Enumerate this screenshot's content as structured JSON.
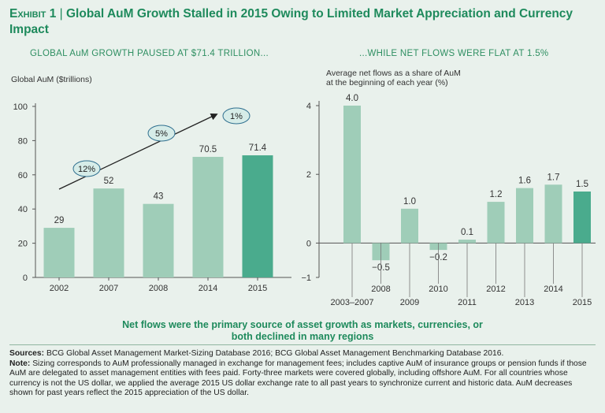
{
  "exhibit_label": "Exhibit 1",
  "title": "Global AuM Growth Stalled in 2015 Owing to Limited Market Appreciation and Currency Impact",
  "takeaway": "Net flows were the primary source of asset growth as markets, currencies, or both declined in many regions",
  "sources_label": "Sources:",
  "sources_text": "BCG Global Asset Management Market-Sizing Database 2016; BCG Global Asset Management Benchmarking Database 2016.",
  "note_label": "Note:",
  "note_text": "Sizing corresponds to AuM professionally managed in exchange for management fees; includes captive AuM of insurance groups or pension funds if those AuM are delegated to asset management entities with fees paid. Forty-three markets were covered globally, including offshore AuM. For all countries whose currency is not the US dollar, we applied the average 2015 US dollar exchange rate to all past years to synchronize current and historic data. AuM decreases shown for past years reflect the 2015 appreciation of the US dollar.",
  "colors": {
    "bar": "#9fcdb8",
    "highlight": "#4aab8d",
    "title": "#1e8a5c",
    "background": "#e9f1ec"
  },
  "chart_data": [
    {
      "type": "bar",
      "title": "GLOBAL AuM GROWTH PAUSED AT $71.4 TRILLION...",
      "ylabel": "Global AuM ($trillions)",
      "xlabel": "",
      "ylim": [
        0,
        100
      ],
      "yticks": [
        0,
        20,
        40,
        60,
        80,
        100
      ],
      "categories": [
        "2002",
        "2007",
        "2008",
        "2014",
        "2015"
      ],
      "values": [
        29,
        52,
        43,
        70.5,
        71.4
      ],
      "value_labels": [
        "29",
        "52",
        "43",
        "70.5",
        "71.4"
      ],
      "highlight_index": 4,
      "growth_annotations": [
        "12%",
        "5%",
        "1%"
      ]
    },
    {
      "type": "bar",
      "title": "...WHILE NET FLOWS WERE FLAT AT 1.5%",
      "ylabel": "Average net flows as a share of AuM at the beginning of each year (%)",
      "ylabel_lines": [
        "Average net flows as a share of AuM",
        "at the beginning of each year (%)"
      ],
      "xlabel": "",
      "ylim": [
        -1,
        4
      ],
      "yticks": [
        -1,
        0,
        2,
        4
      ],
      "ytick_labels": [
        "−1",
        "0",
        "2",
        "4"
      ],
      "categories": [
        "2003–2007",
        "2008",
        "2009",
        "2010",
        "2011",
        "2012",
        "2013",
        "2014",
        "2015"
      ],
      "values": [
        4.0,
        -0.5,
        1.0,
        -0.2,
        0.1,
        1.2,
        1.6,
        1.7,
        1.5
      ],
      "value_labels": [
        "4.0",
        "−0.5",
        "1.0",
        "−0.2",
        "0.1",
        "1.2",
        "1.6",
        "1.7",
        "1.5"
      ],
      "highlight_index": 8
    }
  ]
}
